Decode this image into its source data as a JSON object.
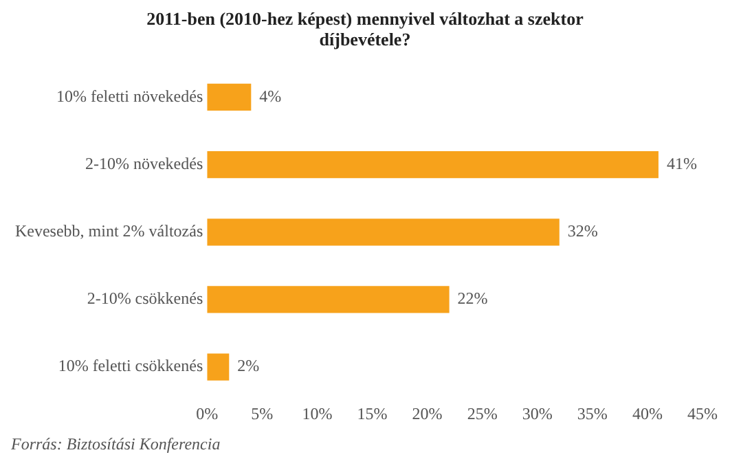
{
  "chart_data": {
    "type": "bar",
    "orientation": "horizontal",
    "title": "2011-ben (2010-hez képest) mennyivel változhat a szektor díjbevétele?",
    "categories": [
      "10% feletti növekedés",
      "2-10% növekedés",
      "Kevesebb, mint 2% változás",
      "2-10% csökkenés",
      "10% feletti csökkenés"
    ],
    "values": [
      4,
      41,
      32,
      22,
      2
    ],
    "value_labels": [
      "4%",
      "41%",
      "32%",
      "22%",
      "2%"
    ],
    "color": "#f7a21b",
    "xlim": [
      0,
      45
    ],
    "xticks": [
      {
        "value": 0,
        "label": "0%"
      },
      {
        "value": 5,
        "label": "5%"
      },
      {
        "value": 10,
        "label": "10%"
      },
      {
        "value": 15,
        "label": "15%"
      },
      {
        "value": 20,
        "label": "20%"
      },
      {
        "value": 25,
        "label": "25%"
      },
      {
        "value": 30,
        "label": "30%"
      },
      {
        "value": 35,
        "label": "35%"
      },
      {
        "value": 40,
        "label": "40%"
      },
      {
        "value": 45,
        "label": "45%"
      }
    ],
    "grid": false,
    "legend": false,
    "annotations": [
      "Forrás: Biztosítási Konferencia"
    ]
  }
}
